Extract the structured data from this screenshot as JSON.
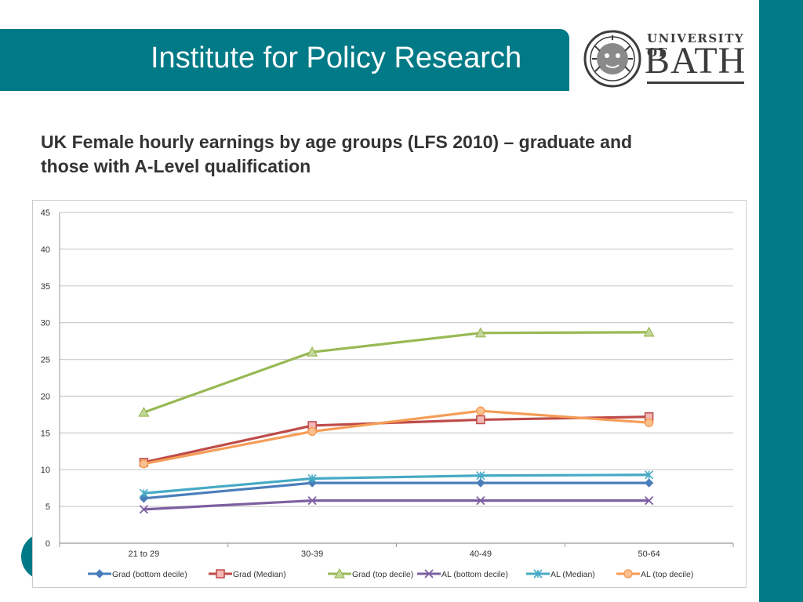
{
  "header": {
    "title": "Institute for Policy Research",
    "logo_line1": "UNIVERSITY OF",
    "logo_line2": "BATH"
  },
  "slide": {
    "heading_line1": "UK Female hourly earnings by age groups (LFS 2010) – graduate and",
    "heading_line2": "those with A-Level qualification"
  },
  "colors": {
    "brand": "#007a87",
    "grad_bottom": "#4a7ebb",
    "grad_median": "#be4b48",
    "grad_top": "#98b954",
    "al_bottom": "#7d60a0",
    "al_median": "#46aac5",
    "al_top": "#f59d56"
  },
  "chart_data": {
    "type": "line",
    "categories": [
      "21 to 29",
      "30-39",
      "40-49",
      "50-64"
    ],
    "ylim": [
      0,
      45
    ],
    "yticks": [
      0,
      5,
      10,
      15,
      20,
      25,
      30,
      35,
      40,
      45
    ],
    "grid": true,
    "legend_position": "bottom",
    "series": [
      {
        "name": "Grad (bottom decile)",
        "values": [
          6.1,
          8.2,
          8.2,
          8.2
        ],
        "color": "#4a7ebb",
        "marker": "diamond"
      },
      {
        "name": "Grad (Median)",
        "values": [
          11.0,
          16.0,
          16.8,
          17.2
        ],
        "color": "#be4b48",
        "marker": "square"
      },
      {
        "name": "Grad (top decile)",
        "values": [
          17.8,
          26.0,
          28.6,
          28.7
        ],
        "color": "#98b954",
        "marker": "triangle"
      },
      {
        "name": "AL (bottom decile)",
        "values": [
          4.6,
          5.8,
          5.8,
          5.8
        ],
        "color": "#7d60a0",
        "marker": "x"
      },
      {
        "name": "AL (Median)",
        "values": [
          6.8,
          8.8,
          9.2,
          9.3
        ],
        "color": "#46aac5",
        "marker": "star"
      },
      {
        "name": "AL (top decile)",
        "values": [
          10.8,
          15.2,
          18.0,
          16.4
        ],
        "color": "#f59d56",
        "marker": "circle"
      }
    ]
  }
}
